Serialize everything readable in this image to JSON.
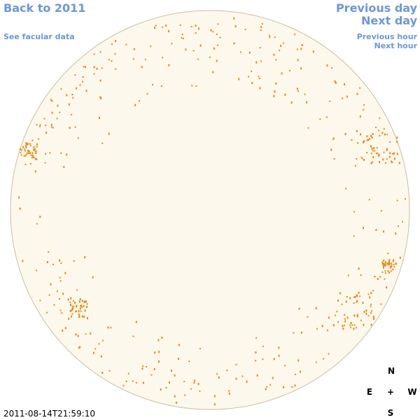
{
  "links": {
    "back": "Back to 2011",
    "facular": "See facular data",
    "previous_day": "Previous day",
    "next_day": "Next day",
    "previous_hour": "Previous hour",
    "next_hour": "Next hour"
  },
  "timestamp": "2011-08-14T21:59:10",
  "compass": {
    "north": "N",
    "east": "E",
    "center": "+",
    "west": "W",
    "south": "S"
  }
}
